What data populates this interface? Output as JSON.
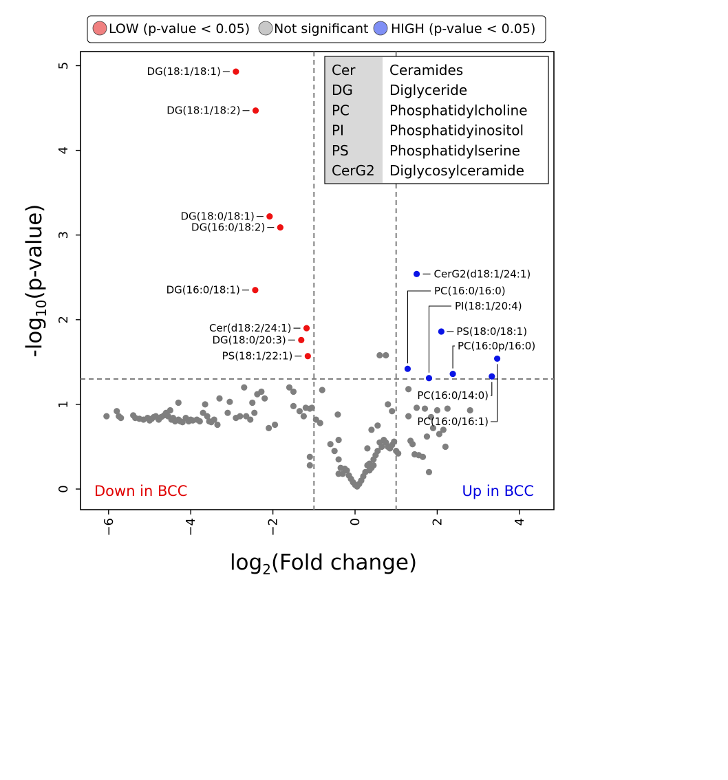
{
  "legend": {
    "items": [
      {
        "label": "LOW (p-value  < 0.05)",
        "color": "#f08080"
      },
      {
        "label": "Not significant",
        "color": "#c8c8c8"
      },
      {
        "label": "HIGH (p-value  < 0.05)",
        "color": "#7f8ff5"
      }
    ]
  },
  "abbreviations": [
    {
      "abbr": "Cer",
      "name": "Ceramides"
    },
    {
      "abbr": "DG",
      "name": "Diglyceride"
    },
    {
      "abbr": "PC",
      "name": "Phosphatidylcholine"
    },
    {
      "abbr": "PI",
      "name": "Phosphatidyinositol"
    },
    {
      "abbr": "PS",
      "name": "Phosphatidylserine"
    },
    {
      "abbr": "CerG2",
      "name": "Diglycosylceramide"
    }
  ],
  "region_labels": {
    "left": "Down in BCC",
    "right": "Up in BCC",
    "left_color": "#e00000",
    "right_color": "#0000e0"
  },
  "chart_data": {
    "type": "scatter",
    "xlabel_base": "log",
    "xlabel_sub": "2",
    "xlabel_rest": "(Fold change)",
    "ylabel_base": "-log",
    "ylabel_sub": "10",
    "ylabel_rest": "(p-value)",
    "xlim": [
      -6.6,
      4.8
    ],
    "ylim": [
      -0.25,
      5.2
    ],
    "x_ticks": [
      -6,
      -4,
      -2,
      0,
      2,
      4
    ],
    "x_tick_labels": [
      "−6",
      "−4",
      "−2",
      "0",
      "2",
      "4"
    ],
    "y_ticks": [
      0,
      1,
      2,
      3,
      4,
      5
    ],
    "y_tick_labels": [
      "0",
      "1",
      "2",
      "3",
      "4",
      "5"
    ],
    "thresholds": {
      "x": [
        -1,
        1
      ],
      "y": 1.3
    },
    "colors": {
      "low": "#ee1111",
      "high": "#0a14e6",
      "ns": "#7f7f7f",
      "threshold": "#7f7f7f"
    },
    "low": [
      {
        "x": -2.9,
        "y": 4.93,
        "label": "DG(18:1/18:1)"
      },
      {
        "x": -2.42,
        "y": 4.47,
        "label": "DG(18:1/18:2)"
      },
      {
        "x": -2.08,
        "y": 3.22,
        "label": "DG(18:0/18:1)"
      },
      {
        "x": -1.82,
        "y": 3.09,
        "label": "DG(16:0/18:2)"
      },
      {
        "x": -2.43,
        "y": 2.35,
        "label": "DG(16:0/18:1)"
      },
      {
        "x": -1.18,
        "y": 1.9,
        "label": "Cer(d18:2/24:1)"
      },
      {
        "x": -1.31,
        "y": 1.76,
        "label": "DG(18:0/20:3)"
      },
      {
        "x": -1.15,
        "y": 1.57,
        "label": "PS(18:1/22:1)"
      }
    ],
    "high": [
      {
        "x": 1.5,
        "y": 2.54,
        "label": "CerG2(d18:1/24:1)"
      },
      {
        "x": 1.28,
        "y": 1.42,
        "label": "PC(16:0/16:0)"
      },
      {
        "x": 1.8,
        "y": 1.31,
        "label": "PI(18:1/20:4)"
      },
      {
        "x": 2.1,
        "y": 1.86,
        "label": "PS(18:0/18:1)"
      },
      {
        "x": 2.38,
        "y": 1.36,
        "label": "PC(16:0p/16:0)"
      },
      {
        "x": 3.33,
        "y": 1.33,
        "label": "PC(16:0/14:0)"
      },
      {
        "x": 3.46,
        "y": 1.54,
        "label": "PC(16:0/16:1)"
      }
    ],
    "not_significant": [
      [
        -6.05,
        0.86
      ],
      [
        -5.8,
        0.92
      ],
      [
        -5.75,
        0.86
      ],
      [
        -5.7,
        0.84
      ],
      [
        -5.4,
        0.87
      ],
      [
        -5.35,
        0.84
      ],
      [
        -5.25,
        0.83
      ],
      [
        -5.15,
        0.82
      ],
      [
        -5.05,
        0.84
      ],
      [
        -5.0,
        0.81
      ],
      [
        -4.95,
        0.83
      ],
      [
        -4.9,
        0.85
      ],
      [
        -4.85,
        0.86
      ],
      [
        -4.78,
        0.82
      ],
      [
        -4.72,
        0.85
      ],
      [
        -4.65,
        0.87
      ],
      [
        -4.6,
        0.9
      ],
      [
        -4.55,
        0.86
      ],
      [
        -4.5,
        0.93
      ],
      [
        -4.47,
        0.82
      ],
      [
        -4.43,
        0.84
      ],
      [
        -4.38,
        0.8
      ],
      [
        -4.3,
        0.82
      ],
      [
        -4.25,
        0.8
      ],
      [
        -4.2,
        0.79
      ],
      [
        -4.12,
        0.84
      ],
      [
        -4.05,
        0.8
      ],
      [
        -4.0,
        0.82
      ],
      [
        -3.95,
        0.81
      ],
      [
        -3.85,
        0.82
      ],
      [
        -3.78,
        0.8
      ],
      [
        -4.3,
        1.02
      ],
      [
        -3.7,
        0.9
      ],
      [
        -3.65,
        1.0
      ],
      [
        -3.6,
        0.86
      ],
      [
        -3.55,
        0.8
      ],
      [
        -3.5,
        0.79
      ],
      [
        -3.43,
        0.82
      ],
      [
        -3.35,
        0.76
      ],
      [
        -3.3,
        1.07
      ],
      [
        -3.1,
        0.9
      ],
      [
        -3.05,
        1.03
      ],
      [
        -2.9,
        0.84
      ],
      [
        -2.8,
        0.86
      ],
      [
        -2.7,
        1.2
      ],
      [
        -2.65,
        0.86
      ],
      [
        -2.55,
        0.82
      ],
      [
        -2.5,
        1.02
      ],
      [
        -2.45,
        0.9
      ],
      [
        -2.38,
        1.12
      ],
      [
        -2.28,
        1.15
      ],
      [
        -2.2,
        1.07
      ],
      [
        -2.1,
        0.72
      ],
      [
        -1.95,
        0.76
      ],
      [
        -1.6,
        1.2
      ],
      [
        -1.5,
        1.15
      ],
      [
        -1.5,
        0.98
      ],
      [
        -1.35,
        0.92
      ],
      [
        -1.25,
        0.86
      ],
      [
        -1.2,
        0.96
      ],
      [
        -1.1,
        0.95
      ],
      [
        -1.05,
        0.96
      ],
      [
        -0.95,
        0.82
      ],
      [
        -0.85,
        0.78
      ],
      [
        -0.8,
        1.17
      ],
      [
        -0.6,
        0.53
      ],
      [
        -0.5,
        0.45
      ],
      [
        -0.4,
        0.35
      ],
      [
        -0.4,
        0.18
      ],
      [
        -0.35,
        0.25
      ],
      [
        -0.3,
        0.18
      ],
      [
        -0.25,
        0.24
      ],
      [
        -0.2,
        0.22
      ],
      [
        -0.15,
        0.16
      ],
      [
        -0.1,
        0.12
      ],
      [
        -0.05,
        0.08
      ],
      [
        0.0,
        0.05
      ],
      [
        0.05,
        0.03
      ],
      [
        0.1,
        0.06
      ],
      [
        0.15,
        0.1
      ],
      [
        0.2,
        0.15
      ],
      [
        0.25,
        0.2
      ],
      [
        0.3,
        0.28
      ],
      [
        0.35,
        0.3
      ],
      [
        0.4,
        0.25
      ],
      [
        0.45,
        0.35
      ],
      [
        0.5,
        0.4
      ],
      [
        0.55,
        0.45
      ],
      [
        0.6,
        0.55
      ],
      [
        0.65,
        0.5
      ],
      [
        0.7,
        0.58
      ],
      [
        0.75,
        0.55
      ],
      [
        0.8,
        0.5
      ],
      [
        0.85,
        0.48
      ],
      [
        0.9,
        0.52
      ],
      [
        0.95,
        0.56
      ],
      [
        1.0,
        0.45
      ],
      [
        1.05,
        0.42
      ],
      [
        0.4,
        0.7
      ],
      [
        0.55,
        0.75
      ],
      [
        0.8,
        1.0
      ],
      [
        0.6,
        1.58
      ],
      [
        0.75,
        1.58
      ],
      [
        0.9,
        0.92
      ],
      [
        1.3,
        1.18
      ],
      [
        1.3,
        0.86
      ],
      [
        1.35,
        0.57
      ],
      [
        1.4,
        0.53
      ],
      [
        1.45,
        0.41
      ],
      [
        1.55,
        0.4
      ],
      [
        1.5,
        0.96
      ],
      [
        1.65,
        0.38
      ],
      [
        1.7,
        0.95
      ],
      [
        1.75,
        0.62
      ],
      [
        1.85,
        0.85
      ],
      [
        1.9,
        0.72
      ],
      [
        2.0,
        0.93
      ],
      [
        2.05,
        0.65
      ],
      [
        2.15,
        0.7
      ],
      [
        2.2,
        0.5
      ],
      [
        2.25,
        0.95
      ],
      [
        2.8,
        0.93
      ],
      [
        1.8,
        0.2
      ],
      [
        -1.1,
        0.38
      ],
      [
        -1.1,
        0.28
      ],
      [
        -0.42,
        0.88
      ],
      [
        -0.4,
        0.58
      ],
      [
        0.3,
        0.48
      ],
      [
        0.45,
        0.28
      ],
      [
        0.35,
        0.22
      ]
    ]
  }
}
